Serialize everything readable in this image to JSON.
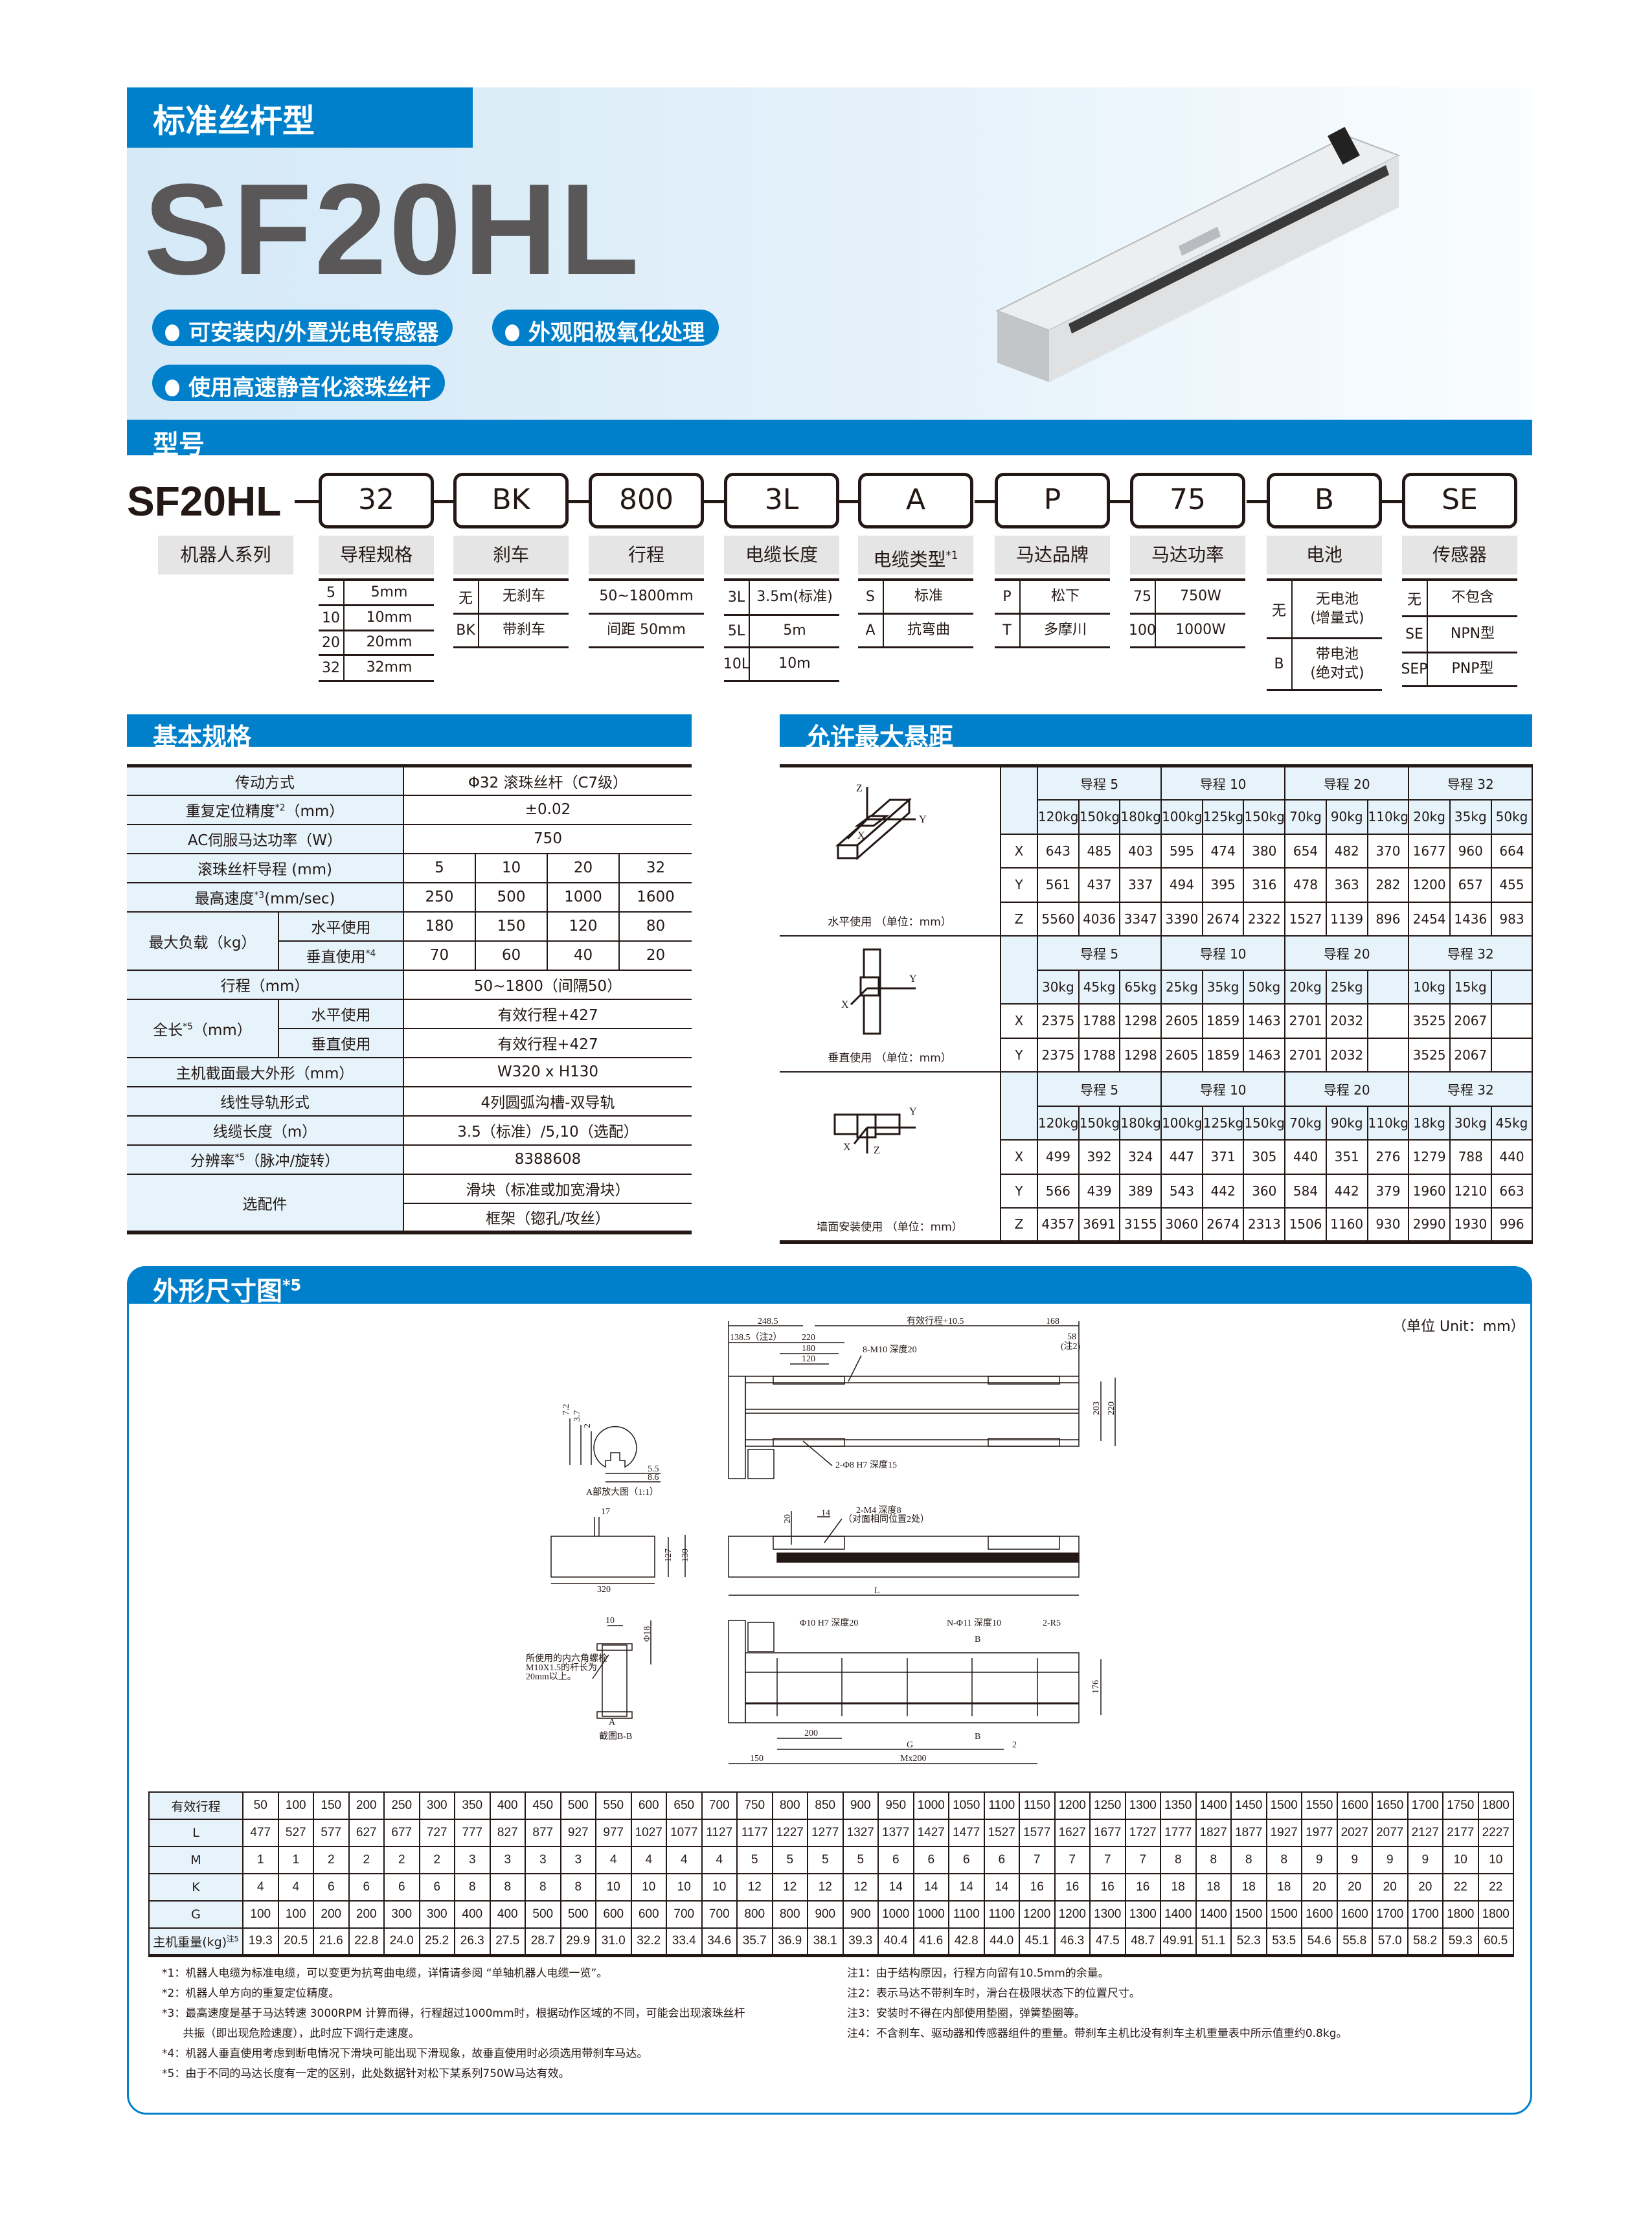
{
  "header": {
    "category": "标准丝杆型",
    "model": "SF20HL",
    "features": [
      "可安装内/外置光电传感器",
      "外观阳极氧化处理",
      "使用高速静音化滚珠丝杆"
    ]
  },
  "model_section": {
    "title": "型号",
    "series_code": "SF20HL",
    "series_label": "机器人系列",
    "fields": [
      {
        "code": "32",
        "label": "导程规格",
        "sup": "",
        "options": [
          [
            "5",
            "5mm"
          ],
          [
            "10",
            "10mm"
          ],
          [
            "20",
            "20mm"
          ],
          [
            "32",
            "32mm"
          ]
        ]
      },
      {
        "code": "BK",
        "label": "刹车",
        "sup": "",
        "options": [
          [
            "无",
            "无刹车"
          ],
          [
            "BK",
            "带刹车"
          ]
        ]
      },
      {
        "code": "800",
        "label": "行程",
        "sup": "",
        "options": [
          [
            "",
            "50~1800mm"
          ],
          [
            "",
            "间距 50mm"
          ]
        ]
      },
      {
        "code": "3L",
        "label": "电缆长度",
        "sup": "",
        "options": [
          [
            "3L",
            "3.5m(标准)"
          ],
          [
            "5L",
            "5m"
          ],
          [
            "10L",
            "10m"
          ]
        ]
      },
      {
        "code": "A",
        "label": "电缆类型",
        "sup": "*1",
        "options": [
          [
            "S",
            "标准"
          ],
          [
            "A",
            "抗弯曲"
          ]
        ]
      },
      {
        "code": "P",
        "label": "马达品牌",
        "sup": "",
        "options": [
          [
            "P",
            "松下"
          ],
          [
            "T",
            "多摩川"
          ]
        ]
      },
      {
        "code": "75",
        "label": "马达功率",
        "sup": "",
        "options": [
          [
            "75",
            "750W"
          ],
          [
            "100",
            "1000W"
          ]
        ]
      },
      {
        "code": "B",
        "label": "电池",
        "sup": "",
        "options": [
          [
            "无",
            "无电池\n(增量式)"
          ],
          [
            "B",
            "带电池\n(绝对式)"
          ]
        ]
      },
      {
        "code": "SE",
        "label": "传感器",
        "sup": "",
        "options": [
          [
            "无",
            "不包含"
          ],
          [
            "SE",
            "NPN型"
          ],
          [
            "SEP",
            "PNP型"
          ]
        ]
      }
    ]
  },
  "specs": {
    "title": "基本规格",
    "drive": {
      "label": "传动方式",
      "value": "Φ32 滚珠丝杆（C7级）"
    },
    "repeatability": {
      "label": "重复定位精度",
      "sup": "*2",
      "unit": "（mm）",
      "value": "±0.02"
    },
    "motor_power": {
      "label": "AC伺服马达功率（W）",
      "value": "750"
    },
    "lead": {
      "label": "滚珠丝杆导程 (mm)",
      "values": [
        "5",
        "10",
        "20",
        "32"
      ]
    },
    "max_speed": {
      "label": "最高速度",
      "sup": "*3",
      "unit": "(mm/sec)",
      "values": [
        "250",
        "500",
        "1000",
        "1600"
      ]
    },
    "max_load": {
      "label": "最大负载（kg）",
      "horizontal_label": "水平使用",
      "horizontal": [
        "180",
        "150",
        "120",
        "80"
      ],
      "vertical_label": "垂直使用",
      "vertical_sup": "*4",
      "vertical": [
        "70",
        "60",
        "40",
        "20"
      ]
    },
    "stroke": {
      "label": "行程（mm）",
      "value": "50~1800（间隔50）"
    },
    "length": {
      "label": "全长",
      "sup": "*5",
      "unit": "（mm）",
      "horizontal_label": "水平使用",
      "horizontal": "有效行程+427",
      "vertical_label": "垂直使用",
      "vertical": "有效行程+427"
    },
    "section": {
      "label": "主机截面最大外形（mm）",
      "value": "W320 x H130"
    },
    "guide": {
      "label": "线性导轨形式",
      "value": "4列圆弧沟槽-双导轨"
    },
    "cable": {
      "label": "线缆长度（m）",
      "value": "3.5（标准）/5,10（选配）"
    },
    "resolution": {
      "label": "分辨率",
      "sup": "*5",
      "unit": "（脉冲/旋转）",
      "value": "8388608"
    },
    "options": {
      "label": "选配件",
      "values": [
        "滑块（标准或加宽滑块）",
        "框架（锪孔/攻丝）"
      ]
    }
  },
  "overhang": {
    "title": "允许最大悬距",
    "blocks": [
      {
        "caption": "水平使用 （单位：mm）",
        "icon": "horizontal-mount-icon",
        "axes_labels": [
          "Z",
          "Y",
          "X"
        ],
        "leads": [
          "导程 5",
          "导程 10",
          "导程 20",
          "导程 32"
        ],
        "weights": [
          "120kg",
          "150kg",
          "180kg",
          "100kg",
          "125kg",
          "150kg",
          "70kg",
          "90kg",
          "110kg",
          "20kg",
          "35kg",
          "50kg"
        ],
        "rows": [
          {
            "axis": "X",
            "values": [
              "643",
              "485",
              "403",
              "595",
              "474",
              "380",
              "654",
              "482",
              "370",
              "1677",
              "960",
              "664"
            ]
          },
          {
            "axis": "Y",
            "values": [
              "561",
              "437",
              "337",
              "494",
              "395",
              "316",
              "478",
              "363",
              "282",
              "1200",
              "657",
              "455"
            ]
          },
          {
            "axis": "Z",
            "values": [
              "5560",
              "4036",
              "3347",
              "3390",
              "2674",
              "2322",
              "1527",
              "1139",
              "896",
              "2454",
              "1436",
              "983"
            ]
          }
        ]
      },
      {
        "caption": "垂直使用 （单位：mm）",
        "icon": "vertical-mount-icon",
        "axes_labels": [
          "Y",
          "X"
        ],
        "leads": [
          "导程 5",
          "导程 10",
          "导程 20",
          "导程 32"
        ],
        "weights": [
          "30kg",
          "45kg",
          "65kg",
          "25kg",
          "35kg",
          "50kg",
          "20kg",
          "25kg",
          "",
          "10kg",
          "15kg",
          ""
        ],
        "rows": [
          {
            "axis": "X",
            "values": [
              "2375",
              "1788",
              "1298",
              "2605",
              "1859",
              "1463",
              "2701",
              "2032",
              "",
              "3525",
              "2067",
              ""
            ]
          },
          {
            "axis": "Y",
            "values": [
              "2375",
              "1788",
              "1298",
              "2605",
              "1859",
              "1463",
              "2701",
              "2032",
              "",
              "3525",
              "2067",
              ""
            ]
          }
        ]
      },
      {
        "caption": "墙面安装使用 （单位：mm）",
        "icon": "wall-mount-icon",
        "axes_labels": [
          "Y",
          "X",
          "Z"
        ],
        "leads": [
          "导程 5",
          "导程 10",
          "导程 20",
          "导程 32"
        ],
        "weights": [
          "120kg",
          "150kg",
          "180kg",
          "100kg",
          "125kg",
          "150kg",
          "70kg",
          "90kg",
          "110kg",
          "18kg",
          "30kg",
          "45kg"
        ],
        "rows": [
          {
            "axis": "X",
            "values": [
              "499",
              "392",
              "324",
              "447",
              "371",
              "305",
              "440",
              "351",
              "276",
              "1279",
              "788",
              "440"
            ]
          },
          {
            "axis": "Y",
            "values": [
              "566",
              "439",
              "389",
              "543",
              "442",
              "360",
              "584",
              "442",
              "379",
              "1960",
              "1210",
              "663"
            ]
          },
          {
            "axis": "Z",
            "values": [
              "4357",
              "3691",
              "3155",
              "3060",
              "2674",
              "2313",
              "1506",
              "1160",
              "930",
              "2990",
              "1930",
              "996"
            ]
          }
        ]
      }
    ]
  },
  "dimensions": {
    "title": "外形尺寸图",
    "title_sup": "*5",
    "unit": "（单位 Unit：mm）",
    "labels": {
      "d248": "248.5",
      "eff": "有效行程+10.5",
      "d168": "168",
      "d138": "138.5（注2）",
      "d220a": "220",
      "d180": "180",
      "d120": "120",
      "m10": "8-M10 深度20",
      "d58": "58",
      "note2": "(注2)",
      "d203": "203",
      "d220b": "220",
      "phi8": "2-Φ8 H7 深度15",
      "a72": "7.2",
      "a37": "3.7",
      "a2": "2",
      "a55": "5.5",
      "a86": "8.6",
      "a_caption": "A部放大图（1:1）",
      "d17": "17",
      "d127": "127",
      "d130": "130",
      "d320": "320",
      "d20": "20",
      "d14": "14",
      "m4": "2-M4 深度8",
      "m4b": "（对面相同位置2处）",
      "L": "L",
      "b10": "10",
      "b18": "Φ18",
      "bolt1": "所使用的内六角螺栓",
      "bolt2": "M10X1.5的杆长为",
      "bolt3": "20mm以上。",
      "bA": "A",
      "b_caption": "截图B-B",
      "phi10": "Φ10 H7 深度20",
      "nphi11": "N-Φ11 深度10",
      "r5": "2-R5",
      "B1": "B",
      "B2": "B",
      "d200": "200",
      "G": "G",
      "d2": "2",
      "d150": "150",
      "mx200": "Mx200",
      "d176": "176"
    },
    "table": {
      "rows": [
        {
          "label": "有效行程",
          "sup": "",
          "values": [
            "50",
            "100",
            "150",
            "200",
            "250",
            "300",
            "350",
            "400",
            "450",
            "500",
            "550",
            "600",
            "650",
            "700",
            "750",
            "800",
            "850",
            "900",
            "950",
            "1000",
            "1050",
            "1100",
            "1150",
            "1200",
            "1250",
            "1300",
            "1350",
            "1400",
            "1450",
            "1500",
            "1550",
            "1600",
            "1650",
            "1700",
            "1750",
            "1800"
          ]
        },
        {
          "label": "L",
          "sup": "",
          "values": [
            "477",
            "527",
            "577",
            "627",
            "677",
            "727",
            "777",
            "827",
            "877",
            "927",
            "977",
            "1027",
            "1077",
            "1127",
            "1177",
            "1227",
            "1277",
            "1327",
            "1377",
            "1427",
            "1477",
            "1527",
            "1577",
            "1627",
            "1677",
            "1727",
            "1777",
            "1827",
            "1877",
            "1927",
            "1977",
            "2027",
            "2077",
            "2127",
            "2177",
            "2227"
          ]
        },
        {
          "label": "M",
          "sup": "",
          "values": [
            "1",
            "1",
            "2",
            "2",
            "2",
            "2",
            "3",
            "3",
            "3",
            "3",
            "4",
            "4",
            "4",
            "4",
            "5",
            "5",
            "5",
            "5",
            "6",
            "6",
            "6",
            "6",
            "7",
            "7",
            "7",
            "7",
            "8",
            "8",
            "8",
            "8",
            "9",
            "9",
            "9",
            "9",
            "10",
            "10"
          ]
        },
        {
          "label": "K",
          "sup": "",
          "values": [
            "4",
            "4",
            "6",
            "6",
            "6",
            "6",
            "8",
            "8",
            "8",
            "8",
            "10",
            "10",
            "10",
            "10",
            "12",
            "12",
            "12",
            "12",
            "14",
            "14",
            "14",
            "14",
            "16",
            "16",
            "16",
            "16",
            "18",
            "18",
            "18",
            "18",
            "20",
            "20",
            "20",
            "20",
            "22",
            "22"
          ]
        },
        {
          "label": "G",
          "sup": "",
          "values": [
            "100",
            "100",
            "200",
            "200",
            "300",
            "300",
            "400",
            "400",
            "500",
            "500",
            "600",
            "600",
            "700",
            "700",
            "800",
            "800",
            "900",
            "900",
            "1000",
            "1000",
            "1100",
            "1100",
            "1200",
            "1200",
            "1300",
            "1300",
            "1400",
            "1400",
            "1500",
            "1500",
            "1600",
            "1600",
            "1700",
            "1700",
            "1800",
            "1800"
          ]
        },
        {
          "label": "主机重量(kg)",
          "sup": "注5",
          "values": [
            "19.3",
            "20.5",
            "21.6",
            "22.8",
            "24.0",
            "25.2",
            "26.3",
            "27.5",
            "28.7",
            "29.9",
            "31.0",
            "32.2",
            "33.4",
            "34.6",
            "35.7",
            "36.9",
            "38.1",
            "39.3",
            "40.4",
            "41.6",
            "42.8",
            "44.0",
            "45.1",
            "46.3",
            "47.5",
            "48.7",
            "49.91",
            "51.1",
            "52.3",
            "53.5",
            "54.6",
            "55.8",
            "57.0",
            "58.2",
            "59.3",
            "60.5"
          ]
        }
      ]
    },
    "footnotes_left": [
      "*1：机器人电缆为标准电缆，可以变更为抗弯曲电缆，详情请参阅 “单轴机器人电缆一览”。",
      "*2：机器人单方向的重复定位精度。",
      "*3：最高速度是基于马达转速 3000RPM 计算而得，行程超过1000mm时，根据动作区域的不同，可能会出现滚珠丝杆",
      "      共振（即出现危险速度），此时应下调行走速度。",
      "*4：机器人垂直使用考虑到断电情况下滑块可能出现下滑现象，故垂直使用时必须选用带刹车马达。",
      "*5：由于不同的马达长度有一定的区别，此处数据针对松下某系列750W马达有效。"
    ],
    "footnotes_right": [
      "注1：由于结构原因，行程方向留有10.5mm的余量。",
      "注2：表示马达不带刹车时，滑台在极限状态下的位置尺寸。",
      "注3：安装时不得在内部使用垫圈，弹簧垫圈等。",
      "注4：不含刹车、驱动器和传感器组件的重量。带刹车主机比没有刹车主机重量表中所示值重约0.8kg。"
    ]
  },
  "colors": {
    "brand_blue": "#0080CB",
    "table_header_bg": "#E6F3FB",
    "model_text": "#595757",
    "label_bg": "#E5E5E5"
  }
}
